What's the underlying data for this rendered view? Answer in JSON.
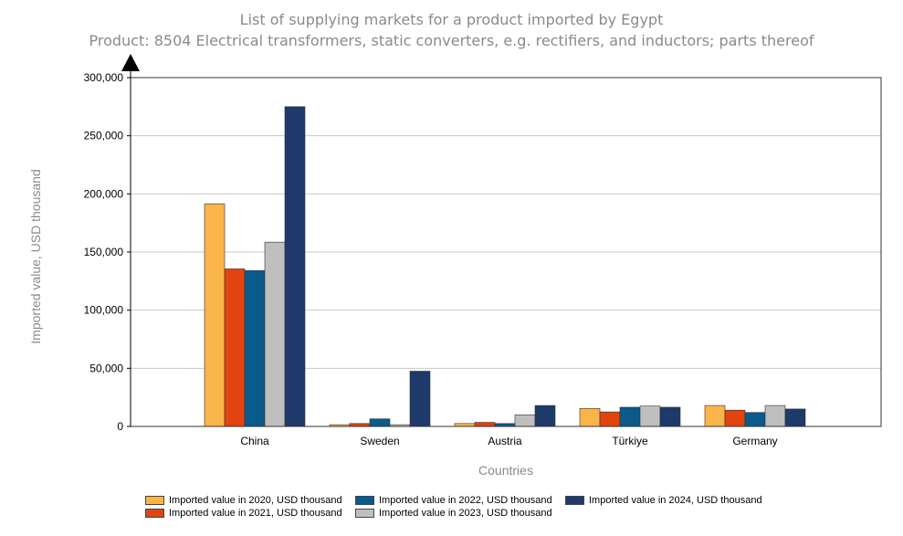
{
  "chart_data": {
    "type": "bar",
    "title": "List of supplying markets for a product imported by Egypt",
    "subtitle": "Product: 8504 Electrical transformers, static converters, e.g. rectifiers, and inductors; parts thereof",
    "xlabel": "Countries",
    "ylabel": "Imported value, USD thousand",
    "ylim": [
      0,
      300000
    ],
    "yticks": [
      0,
      50000,
      100000,
      150000,
      200000,
      250000,
      300000
    ],
    "ytick_labels": [
      "0",
      "50,000",
      "100,000",
      "150,000",
      "200,000",
      "250,000",
      "300,000"
    ],
    "grid": true,
    "legend_position": "bottom",
    "categories": [
      "China",
      "Sweden",
      "Austria",
      "Türkiye",
      "Germany"
    ],
    "series": [
      {
        "name": "Imported value in 2020, USD thousand",
        "color": "#f9b54a",
        "values": [
          191500,
          1500,
          2500,
          15500,
          18000
        ]
      },
      {
        "name": "Imported value in 2021, USD thousand",
        "color": "#e1440e",
        "values": [
          135500,
          2500,
          3500,
          12500,
          14000
        ]
      },
      {
        "name": "Imported value in 2022, USD thousand",
        "color": "#0a5a8c",
        "values": [
          134000,
          6500,
          2500,
          16500,
          12000
        ]
      },
      {
        "name": "Imported value in 2023, USD thousand",
        "color": "#bfbfbf",
        "values": [
          158500,
          1500,
          10000,
          17500,
          18000
        ]
      },
      {
        "name": "Imported value in 2024, USD thousand",
        "color": "#1d3a6b",
        "values": [
          275000,
          47500,
          18000,
          16500,
          15000
        ]
      }
    ]
  }
}
